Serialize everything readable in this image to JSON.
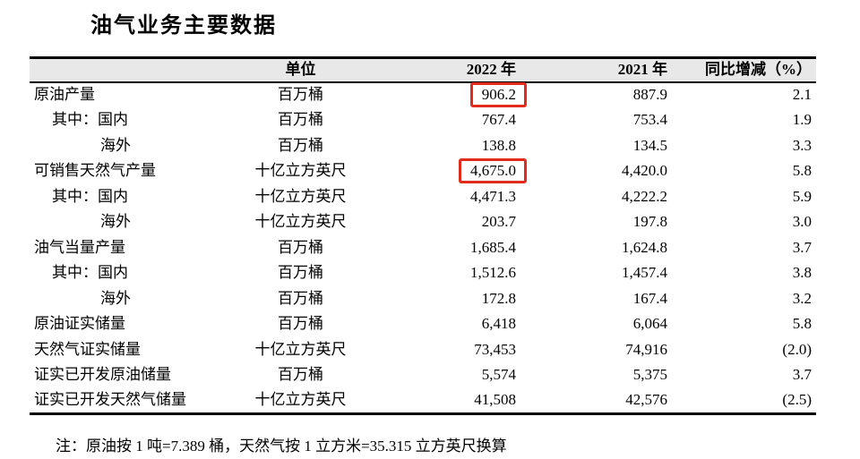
{
  "title": "油气业务主要数据",
  "table": {
    "headers": {
      "indicator": "",
      "unit": "单位",
      "y2022": "2022 年",
      "y2021": "2021 年",
      "change": "同比增减（%）"
    },
    "rows": [
      {
        "indicator": "原油产量",
        "indent": 0,
        "unit": "百万桶",
        "y2022": "906.2",
        "y2021": "887.9",
        "change": "2.1",
        "highlight": true
      },
      {
        "indicator": "其中：国内",
        "indent": 1,
        "unit": "百万桶",
        "y2022": "767.4",
        "y2021": "753.4",
        "change": "1.9",
        "highlight": false
      },
      {
        "indicator": "海外",
        "indent": 2,
        "unit": "百万桶",
        "y2022": "138.8",
        "y2021": "134.5",
        "change": "3.3",
        "highlight": false
      },
      {
        "indicator": "可销售天然气产量",
        "indent": 0,
        "unit": "十亿立方英尺",
        "y2022": "4,675.0",
        "y2021": "4,420.0",
        "change": "5.8",
        "highlight": true
      },
      {
        "indicator": "其中：国内",
        "indent": 1,
        "unit": "十亿立方英尺",
        "y2022": "4,471.3",
        "y2021": "4,222.2",
        "change": "5.9",
        "highlight": false
      },
      {
        "indicator": "海外",
        "indent": 2,
        "unit": "十亿立方英尺",
        "y2022": "203.7",
        "y2021": "197.8",
        "change": "3.0",
        "highlight": false
      },
      {
        "indicator": "油气当量产量",
        "indent": 0,
        "unit": "百万桶",
        "y2022": "1,685.4",
        "y2021": "1,624.8",
        "change": "3.7",
        "highlight": false
      },
      {
        "indicator": "其中：国内",
        "indent": 1,
        "unit": "百万桶",
        "y2022": "1,512.6",
        "y2021": "1,457.4",
        "change": "3.8",
        "highlight": false
      },
      {
        "indicator": "海外",
        "indent": 2,
        "unit": "百万桶",
        "y2022": "172.8",
        "y2021": "167.4",
        "change": "3.2",
        "highlight": false
      },
      {
        "indicator": "原油证实储量",
        "indent": 0,
        "unit": "百万桶",
        "y2022": "6,418",
        "y2021": "6,064",
        "change": "5.8",
        "highlight": false
      },
      {
        "indicator": "天然气证实储量",
        "indent": 0,
        "unit": "十亿立方英尺",
        "y2022": "73,453",
        "y2021": "74,916",
        "change": "(2.0)",
        "highlight": false
      },
      {
        "indicator": "证实已开发原油储量",
        "indent": 0,
        "unit": "百万桶",
        "y2022": "5,574",
        "y2021": "5,375",
        "change": "3.7",
        "highlight": false
      },
      {
        "indicator": "证实已开发天然气储量",
        "indent": 0,
        "unit": "十亿立方英尺",
        "y2022": "41,508",
        "y2021": "42,576",
        "change": "(2.5)",
        "highlight": false
      }
    ]
  },
  "note": "注：原油按 1 吨=7.389 桶，天然气按 1 立方米=35.315 立方英尺换算",
  "highlights": [
    {
      "row_indicator": "原油产量",
      "column": "2022 年",
      "value": "906.2"
    },
    {
      "row_indicator": "可销售天然气产量",
      "column": "2022 年",
      "value": "4,675.0"
    }
  ],
  "colors": {
    "highlight_box": "#e02b1d",
    "header_bg": "#e8e8e8",
    "border": "#000000",
    "text": "#000000"
  }
}
